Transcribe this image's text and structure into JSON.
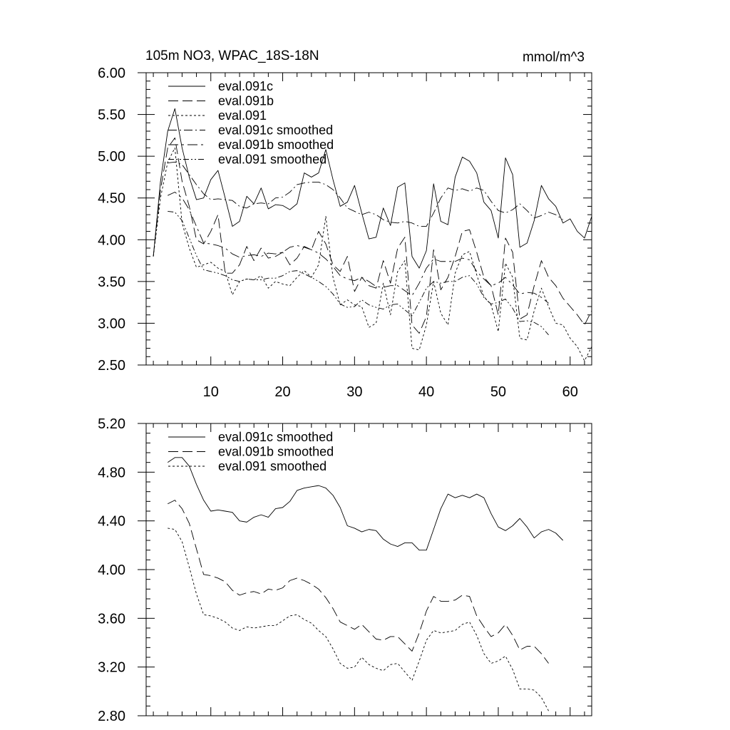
{
  "chart_data": [
    {
      "type": "line",
      "title": "105m NO3, WPAC_18S-18N",
      "units": "mmol/m^3",
      "xlim": [
        1,
        63
      ],
      "ylim": [
        2.5,
        6.0
      ],
      "xticks": [
        10,
        20,
        30,
        40,
        50,
        60
      ],
      "yticks": [
        2.5,
        3.0,
        3.5,
        4.0,
        4.5,
        5.0,
        5.5,
        6.0
      ],
      "ytick_labels": [
        "2.50",
        "3.00",
        "3.50",
        "4.00",
        "4.50",
        "5.00",
        "5.50",
        "6.00"
      ],
      "series": [
        {
          "name": "eval.091c",
          "dash": "solid",
          "x_start": 2,
          "values": [
            3.8,
            4.7,
            5.3,
            5.57,
            5.1,
            4.75,
            4.48,
            4.5,
            4.72,
            4.83,
            4.5,
            4.16,
            4.22,
            4.52,
            4.43,
            4.62,
            4.37,
            4.42,
            4.41,
            4.36,
            4.43,
            4.8,
            4.75,
            4.8,
            5.08,
            4.72,
            4.4,
            4.45,
            4.65,
            4.32,
            4.01,
            4.03,
            4.38,
            4.17,
            4.63,
            4.68,
            3.8,
            3.66,
            3.87,
            4.67,
            4.22,
            4.18,
            4.75,
            4.99,
            4.94,
            4.8,
            4.45,
            4.35,
            4.02,
            4.98,
            4.78,
            3.91,
            3.96,
            4.23,
            4.65,
            4.49,
            4.4,
            4.2,
            4.25,
            4.1,
            4.02,
            4.28
          ]
        },
        {
          "name": "eval.091b",
          "dash": "long",
          "x_start": 2,
          "values": [
            3.8,
            4.6,
            5.1,
            5.22,
            4.7,
            4.4,
            4.0,
            3.95,
            4.1,
            4.3,
            3.6,
            3.6,
            3.7,
            3.92,
            3.75,
            3.9,
            3.78,
            3.8,
            3.85,
            3.7,
            3.78,
            3.92,
            3.88,
            4.1,
            3.95,
            3.7,
            3.62,
            3.8,
            3.38,
            3.55,
            3.45,
            3.42,
            3.75,
            3.48,
            3.9,
            4.03,
            2.98,
            2.88,
            3.08,
            3.88,
            3.4,
            3.55,
            3.8,
            4.1,
            4.12,
            3.85,
            3.55,
            3.45,
            3.1,
            4.02,
            3.85,
            3.05,
            3.1,
            3.45,
            3.75,
            3.55,
            3.45,
            3.3,
            3.2,
            3.1,
            2.98,
            3.15
          ]
        },
        {
          "name": "eval.091",
          "dash": "short",
          "x_start": 2,
          "values": [
            3.8,
            4.5,
            4.93,
            5.1,
            4.2,
            3.9,
            3.67,
            3.7,
            3.73,
            3.66,
            3.62,
            3.34,
            3.5,
            3.53,
            3.52,
            3.57,
            3.42,
            3.5,
            3.47,
            3.45,
            3.55,
            3.63,
            3.55,
            3.7,
            4.28,
            3.55,
            3.22,
            3.28,
            3.22,
            3.2,
            2.95,
            3.0,
            3.48,
            3.1,
            3.62,
            3.75,
            2.7,
            2.68,
            2.98,
            3.5,
            3.12,
            2.98,
            3.6,
            3.82,
            3.86,
            3.58,
            3.32,
            3.22,
            2.9,
            3.72,
            3.55,
            2.82,
            2.8,
            3.15,
            3.42,
            3.2,
            3.0,
            2.98,
            2.82,
            2.72,
            2.55,
            2.72
          ]
        },
        {
          "name": "eval.091c smoothed",
          "dash": "dashdot",
          "x_start": 4,
          "values": [
            4.92,
            4.93,
            4.9,
            4.78,
            4.66,
            4.55,
            4.48,
            4.49,
            4.48,
            4.47,
            4.4,
            4.38,
            4.43,
            4.44,
            4.43,
            4.5,
            4.51,
            4.57,
            4.66,
            4.68,
            4.69,
            4.69,
            4.66,
            4.6,
            4.5,
            4.38,
            4.34,
            4.3,
            4.33,
            4.3,
            4.24,
            4.21,
            4.2,
            4.22,
            4.2,
            4.16,
            4.16,
            4.32,
            4.5,
            4.62,
            4.59,
            4.61,
            4.58,
            4.62,
            4.59,
            4.46,
            4.35,
            4.32,
            4.36,
            4.43,
            4.35,
            4.26,
            4.29,
            4.33,
            4.3,
            4.24
          ]
        },
        {
          "name": "eval.091b smoothed",
          "dash": "dashdotlong",
          "x_start": 4,
          "values": [
            4.53,
            4.57,
            4.5,
            4.36,
            4.16,
            3.96,
            3.95,
            3.93,
            3.9,
            3.83,
            3.79,
            3.81,
            3.82,
            3.8,
            3.84,
            3.83,
            3.85,
            3.91,
            3.93,
            3.91,
            3.88,
            3.84,
            3.77,
            3.68,
            3.57,
            3.53,
            3.51,
            3.55,
            3.5,
            3.44,
            3.43,
            3.45,
            3.45,
            3.39,
            3.33,
            3.48,
            3.66,
            3.77,
            3.74,
            3.74,
            3.74,
            3.78,
            3.76,
            3.62,
            3.53,
            3.45,
            3.48,
            3.55,
            3.46,
            3.35,
            3.37,
            3.36,
            3.31,
            3.24
          ]
        },
        {
          "name": "eval.091 smoothed",
          "dash": "dashdotdot",
          "x_start": 4,
          "values": [
            4.34,
            4.33,
            4.23,
            4.02,
            3.81,
            3.64,
            3.62,
            3.6,
            3.57,
            3.52,
            3.5,
            3.53,
            3.52,
            3.52,
            3.54,
            3.54,
            3.57,
            3.62,
            3.63,
            3.59,
            3.55,
            3.5,
            3.44,
            3.35,
            3.23,
            3.19,
            3.2,
            3.28,
            3.22,
            3.19,
            3.17,
            3.22,
            3.23,
            3.16,
            3.09,
            3.25,
            3.42,
            3.5,
            3.48,
            3.5,
            3.5,
            3.55,
            3.57,
            3.47,
            3.31,
            3.23,
            3.25,
            3.29,
            3.18,
            3.02,
            3.03,
            3.01,
            2.96,
            2.86
          ]
        }
      ]
    },
    {
      "type": "line",
      "title": "",
      "xlim": [
        1,
        63
      ],
      "ylim": [
        2.8,
        5.2
      ],
      "xticks": [
        10,
        20,
        30,
        40,
        50,
        60
      ],
      "yticks": [
        2.8,
        3.2,
        3.6,
        4.0,
        4.4,
        4.8,
        5.2
      ],
      "ytick_labels": [
        "2.80",
        "3.20",
        "3.60",
        "4.00",
        "4.40",
        "4.80",
        "5.20"
      ],
      "series": [
        {
          "name": "eval.091c smoothed",
          "dash": "solid",
          "x_start": 4,
          "values": [
            4.88,
            4.92,
            4.92,
            4.85,
            4.7,
            4.57,
            4.48,
            4.49,
            4.48,
            4.47,
            4.4,
            4.39,
            4.43,
            4.45,
            4.43,
            4.5,
            4.51,
            4.56,
            4.65,
            4.67,
            4.68,
            4.69,
            4.67,
            4.61,
            4.51,
            4.36,
            4.34,
            4.31,
            4.33,
            4.32,
            4.25,
            4.21,
            4.19,
            4.22,
            4.22,
            4.16,
            4.16,
            4.33,
            4.5,
            4.62,
            4.59,
            4.61,
            4.59,
            4.62,
            4.59,
            4.46,
            4.35,
            4.32,
            4.36,
            4.42,
            4.35,
            4.26,
            4.31,
            4.33,
            4.3,
            4.24
          ]
        },
        {
          "name": "eval.091b smoothed",
          "dash": "long",
          "x_start": 4,
          "values": [
            4.54,
            4.57,
            4.5,
            4.38,
            4.17,
            3.96,
            3.95,
            3.93,
            3.9,
            3.83,
            3.79,
            3.81,
            3.82,
            3.8,
            3.84,
            3.83,
            3.85,
            3.91,
            3.93,
            3.91,
            3.88,
            3.84,
            3.77,
            3.68,
            3.57,
            3.54,
            3.51,
            3.55,
            3.49,
            3.43,
            3.42,
            3.45,
            3.45,
            3.39,
            3.33,
            3.48,
            3.66,
            3.78,
            3.74,
            3.74,
            3.75,
            3.79,
            3.78,
            3.62,
            3.53,
            3.45,
            3.48,
            3.55,
            3.46,
            3.34,
            3.37,
            3.37,
            3.31,
            3.23
          ]
        },
        {
          "name": "eval.091 smoothed",
          "dash": "short",
          "x_start": 4,
          "values": [
            4.34,
            4.33,
            4.23,
            4.02,
            3.8,
            3.63,
            3.62,
            3.6,
            3.57,
            3.52,
            3.5,
            3.53,
            3.52,
            3.53,
            3.54,
            3.54,
            3.58,
            3.62,
            3.63,
            3.59,
            3.56,
            3.5,
            3.45,
            3.35,
            3.23,
            3.19,
            3.2,
            3.28,
            3.22,
            3.19,
            3.17,
            3.22,
            3.23,
            3.16,
            3.09,
            3.25,
            3.42,
            3.5,
            3.48,
            3.49,
            3.5,
            3.55,
            3.57,
            3.46,
            3.31,
            3.23,
            3.25,
            3.29,
            3.18,
            3.02,
            3.02,
            3.01,
            2.95,
            2.84
          ]
        }
      ]
    }
  ]
}
